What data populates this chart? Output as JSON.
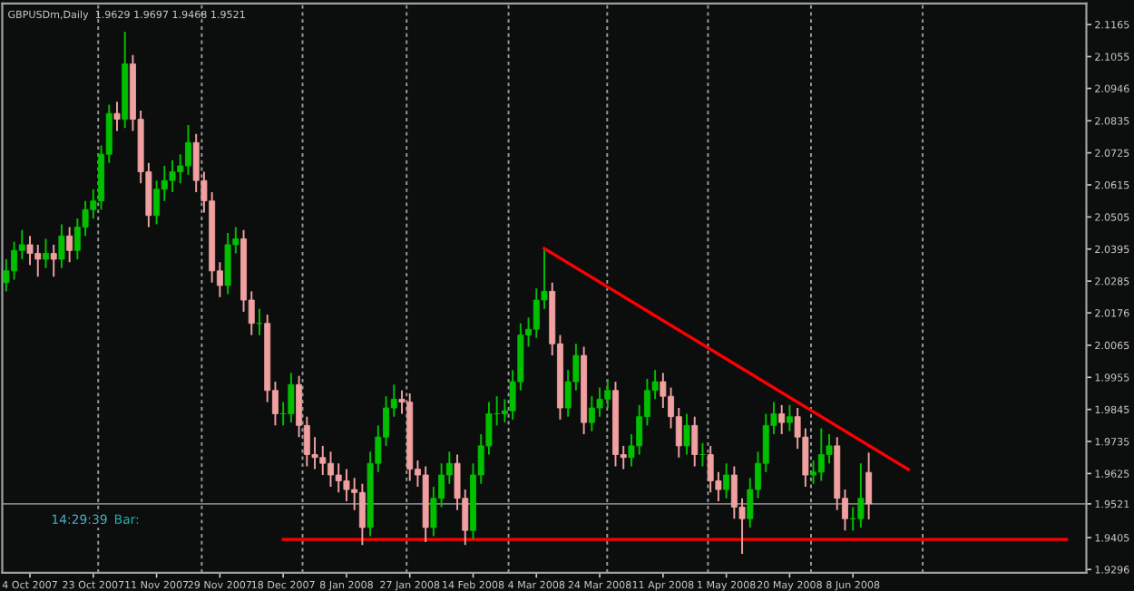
{
  "chart_data": {
    "type": "candlestick",
    "title": "GBPUSDm,Daily  1.9629 1.9697 1.9468 1.9521",
    "annotations": [
      "14:29:39",
      "Bar:"
    ],
    "categories": [
      null,
      null,
      null,
      "4 Oct 2007",
      null,
      null,
      null,
      null,
      null,
      null,
      null,
      "23 Oct 2007",
      null,
      null,
      null,
      null,
      null,
      null,
      null,
      "11 Nov 2007",
      null,
      null,
      null,
      null,
      null,
      null,
      null,
      "29 Nov 2007",
      null,
      null,
      null,
      null,
      null,
      null,
      null,
      "18 Dec 2007",
      null,
      null,
      null,
      null,
      null,
      null,
      null,
      "8 Jan 2008",
      null,
      null,
      null,
      null,
      null,
      null,
      null,
      "27 Jan 2008",
      null,
      null,
      null,
      null,
      null,
      null,
      null,
      "14 Feb 2008",
      null,
      null,
      null,
      null,
      null,
      null,
      null,
      "4 Mar 2008",
      null,
      null,
      null,
      null,
      null,
      null,
      null,
      "24 Mar 2008",
      null,
      null,
      null,
      null,
      null,
      null,
      null,
      "11 Apr 2008",
      null,
      null,
      null,
      null,
      null,
      null,
      null,
      "1 May 2008",
      null,
      null,
      null,
      null,
      null,
      null,
      null,
      "20 May 2008",
      null,
      null,
      null,
      null,
      null,
      null,
      null,
      "8 Jun 2008",
      null,
      null,
      null,
      null,
      null,
      null,
      null,
      null,
      null,
      null,
      null,
      null,
      null,
      null,
      null,
      null,
      null,
      null,
      null,
      null,
      null,
      null,
      null,
      null,
      null,
      null,
      null,
      null,
      null
    ],
    "ylim": [
      1.9285,
      2.1237
    ],
    "yticks": [
      {
        "value": 2.1165,
        "label": "2.1165"
      },
      {
        "value": 2.1055,
        "label": "2.1055"
      },
      {
        "value": 2.0946,
        "label": "2.0946"
      },
      {
        "value": 2.0835,
        "label": "2.0835"
      },
      {
        "value": 2.0725,
        "label": "2.0725"
      },
      {
        "value": 2.0615,
        "label": "2.0615"
      },
      {
        "value": 2.0505,
        "label": "2.0505"
      },
      {
        "value": 2.0395,
        "label": "2.0395"
      },
      {
        "value": 2.0285,
        "label": "2.0285"
      },
      {
        "value": 2.0176,
        "label": "2.0176"
      },
      {
        "value": 2.0065,
        "label": "2.0065"
      },
      {
        "value": 1.9955,
        "label": "1.9955"
      },
      {
        "value": 1.9845,
        "label": "1.9845"
      },
      {
        "value": 1.9735,
        "label": "1.9735"
      },
      {
        "value": 1.9625,
        "label": "1.9625"
      },
      {
        "value": 1.9521,
        "label": "1.9521"
      },
      {
        "value": 1.9405,
        "label": "1.9405"
      },
      {
        "value": 1.9296,
        "label": "1.9296"
      }
    ],
    "grid": false,
    "ref_lines": [
      {
        "axis": "y",
        "value": 1.9521,
        "label": null,
        "color": "#808080",
        "line_style": "solid"
      }
    ],
    "series": [
      {
        "colors": [
          "#00c000",
          "#00c000",
          "#00c000",
          "#f0a0a0",
          "#f0a0a0",
          "#00c000",
          "#f0a0a0",
          "#00c000",
          "#f0a0a0",
          "#00c000",
          "#00c000",
          "#00c000",
          "#00c000",
          "#00c000",
          "#f0a0a0",
          "#00c000",
          "#f0a0a0",
          "#f0a0a0",
          "#f0a0a0",
          "#00c000",
          "#00c000",
          "#00c000",
          "#00c000",
          "#00c000",
          "#f0a0a0",
          "#f0a0a0",
          "#f0a0a0",
          "#f0a0a0",
          "#00c000",
          "#00c000",
          "#f0a0a0",
          "#f0a0a0",
          "#00c000",
          "#f0a0a0",
          "#f0a0a0",
          "#00c000",
          "#00c000",
          "#f0a0a0",
          "#f0a0a0",
          "#f0a0a0",
          "#f0a0a0",
          "#f0a0a0",
          "#f0a0a0",
          "#f0a0a0",
          "#f0a0a0",
          "#f0a0a0",
          "#00c000",
          "#00c000",
          "#00c000",
          "#00c000",
          "#f0a0a0",
          "#f0a0a0",
          "#f0a0a0",
          "#f0a0a0",
          "#00c000",
          "#00c000",
          "#00c000",
          "#f0a0a0",
          "#f0a0a0",
          "#00c000",
          "#00c000",
          "#00c000",
          "#00c000",
          "#00c000",
          "#00c000",
          "#00c000",
          "#00c000",
          "#00c000",
          "#00c000",
          "#f0a0a0",
          "#f0a0a0",
          "#00c000",
          "#00c000",
          "#f0a0a0",
          "#00c000",
          "#00c000",
          "#00c000",
          "#f0a0a0",
          "#f0a0a0",
          "#00c000",
          "#00c000",
          "#00c000",
          "#00c000",
          "#f0a0a0",
          "#f0a0a0",
          "#f0a0a0",
          "#00c000",
          "#f0a0a0",
          "#00c000",
          "#f0a0a0",
          "#f0a0a0",
          "#00c000",
          "#f0a0a0",
          "#f0a0a0",
          "#00c000",
          "#00c000",
          "#00c000",
          "#00c000",
          "#f0a0a0",
          "#00c000",
          "#f0a0a0",
          "#f0a0a0",
          "#00c000",
          "#00c000",
          "#00c000",
          "#f0a0a0",
          "#f0a0a0",
          "#00c000",
          "#00c000",
          "#f0a0a0",
          null,
          null,
          null,
          null,
          null,
          null,
          null,
          null,
          null,
          null,
          null,
          null,
          null,
          null,
          null,
          null,
          null,
          null,
          null,
          null,
          null,
          null,
          null,
          null,
          null,
          null,
          null
        ],
        "ohlc": [
          [
            2.028,
            2.036,
            2.025,
            2.032
          ],
          [
            2.032,
            2.042,
            2.029,
            2.039
          ],
          [
            2.039,
            2.046,
            2.036,
            2.041
          ],
          [
            2.041,
            2.044,
            2.034,
            2.038
          ],
          [
            2.038,
            2.041,
            2.03,
            2.036
          ],
          [
            2.036,
            2.043,
            2.033,
            2.038
          ],
          [
            2.038,
            2.041,
            2.03,
            2.036
          ],
          [
            2.036,
            2.048,
            2.033,
            2.044
          ],
          [
            2.044,
            2.047,
            2.035,
            2.039
          ],
          [
            2.039,
            2.05,
            2.036,
            2.047
          ],
          [
            2.047,
            2.056,
            2.044,
            2.053
          ],
          [
            2.053,
            2.06,
            2.05,
            2.056
          ],
          [
            2.056,
            2.075,
            2.053,
            2.072
          ],
          [
            2.072,
            2.089,
            2.069,
            2.086
          ],
          [
            2.086,
            2.09,
            2.08,
            2.084
          ],
          [
            2.084,
            2.114,
            2.081,
            2.103
          ],
          [
            2.103,
            2.106,
            2.08,
            2.084
          ],
          [
            2.084,
            2.087,
            2.062,
            2.066
          ],
          [
            2.066,
            2.069,
            2.047,
            2.051
          ],
          [
            2.051,
            2.063,
            2.048,
            2.06
          ],
          [
            2.06,
            2.068,
            2.056,
            2.063
          ],
          [
            2.063,
            2.07,
            2.059,
            2.066
          ],
          [
            2.066,
            2.072,
            2.062,
            2.068
          ],
          [
            2.068,
            2.082,
            2.065,
            2.076
          ],
          [
            2.076,
            2.079,
            2.059,
            2.063
          ],
          [
            2.063,
            2.066,
            2.052,
            2.056
          ],
          [
            2.056,
            2.059,
            2.028,
            2.032
          ],
          [
            2.032,
            2.035,
            2.023,
            2.027
          ],
          [
            2.027,
            2.045,
            2.024,
            2.041
          ],
          [
            2.041,
            2.047,
            2.038,
            2.043
          ],
          [
            2.043,
            2.046,
            2.018,
            2.022
          ],
          [
            2.022,
            2.025,
            2.01,
            2.014
          ],
          [
            2.014,
            2.019,
            2.01,
            2.014
          ],
          [
            2.014,
            2.017,
            1.987,
            1.991
          ],
          [
            1.991,
            1.994,
            1.979,
            1.983
          ],
          [
            1.983,
            1.987,
            1.979,
            1.983
          ],
          [
            1.983,
            1.997,
            1.98,
            1.993
          ],
          [
            1.993,
            1.996,
            1.975,
            1.979
          ],
          [
            1.979,
            1.982,
            1.965,
            1.969
          ],
          [
            1.969,
            1.975,
            1.964,
            1.968
          ],
          [
            1.968,
            1.972,
            1.962,
            1.966
          ],
          [
            1.966,
            1.97,
            1.958,
            1.962
          ],
          [
            1.962,
            1.966,
            1.956,
            1.96
          ],
          [
            1.96,
            1.964,
            1.953,
            1.957
          ],
          [
            1.957,
            1.961,
            1.95,
            1.956
          ],
          [
            1.956,
            1.959,
            1.938,
            1.944
          ],
          [
            1.944,
            1.97,
            1.941,
            1.966
          ],
          [
            1.966,
            1.979,
            1.963,
            1.975
          ],
          [
            1.975,
            1.989,
            1.972,
            1.985
          ],
          [
            1.985,
            1.993,
            1.982,
            1.988
          ],
          [
            1.988,
            1.991,
            1.983,
            1.987
          ],
          [
            1.987,
            1.99,
            1.96,
            1.964
          ],
          [
            1.964,
            1.967,
            1.958,
            1.962
          ],
          [
            1.962,
            1.965,
            1.939,
            1.944
          ],
          [
            1.944,
            1.958,
            1.941,
            1.954
          ],
          [
            1.954,
            1.966,
            1.951,
            1.962
          ],
          [
            1.962,
            1.97,
            1.959,
            1.966
          ],
          [
            1.966,
            1.969,
            1.95,
            1.954
          ],
          [
            1.954,
            1.957,
            1.938,
            1.943
          ],
          [
            1.943,
            1.966,
            1.94,
            1.962
          ],
          [
            1.962,
            1.976,
            1.959,
            1.972
          ],
          [
            1.972,
            1.987,
            1.969,
            1.983
          ],
          [
            1.983,
            1.989,
            1.979,
            1.983
          ],
          [
            1.983,
            1.988,
            1.98,
            1.984
          ],
          [
            1.984,
            1.998,
            1.981,
            1.994
          ],
          [
            1.994,
            2.014,
            1.991,
            2.01
          ],
          [
            2.01,
            2.016,
            2.006,
            2.012
          ],
          [
            2.012,
            2.026,
            2.009,
            2.022
          ],
          [
            2.022,
            2.039,
            2.019,
            2.025
          ],
          [
            2.025,
            2.028,
            2.003,
            2.007
          ],
          [
            2.007,
            2.01,
            1.981,
            1.985
          ],
          [
            1.985,
            1.998,
            1.982,
            1.994
          ],
          [
            1.994,
            2.007,
            1.991,
            2.003
          ],
          [
            2.003,
            2.006,
            1.976,
            1.98
          ],
          [
            1.98,
            1.989,
            1.977,
            1.985
          ],
          [
            1.985,
            1.992,
            1.982,
            1.988
          ],
          [
            1.988,
            1.995,
            1.985,
            1.991
          ],
          [
            1.991,
            1.994,
            1.965,
            1.969
          ],
          [
            1.969,
            1.972,
            1.964,
            1.968
          ],
          [
            1.968,
            1.976,
            1.965,
            1.972
          ],
          [
            1.972,
            1.986,
            1.969,
            1.982
          ],
          [
            1.982,
            1.995,
            1.979,
            1.991
          ],
          [
            1.991,
            1.998,
            1.988,
            1.994
          ],
          [
            1.994,
            1.997,
            1.985,
            1.989
          ],
          [
            1.989,
            1.992,
            1.978,
            1.982
          ],
          [
            1.982,
            1.985,
            1.968,
            1.972
          ],
          [
            1.972,
            1.983,
            1.969,
            1.979
          ],
          [
            1.979,
            1.982,
            1.965,
            1.969
          ],
          [
            1.969,
            1.973,
            1.965,
            1.969
          ],
          [
            1.969,
            1.972,
            1.956,
            1.96
          ],
          [
            1.96,
            1.963,
            1.953,
            1.957
          ],
          [
            1.957,
            1.966,
            1.954,
            1.962
          ],
          [
            1.962,
            1.965,
            1.947,
            1.951
          ],
          [
            1.951,
            1.954,
            1.935,
            1.947
          ],
          [
            1.947,
            1.961,
            1.944,
            1.957
          ],
          [
            1.957,
            1.97,
            1.954,
            1.966
          ],
          [
            1.966,
            1.983,
            1.963,
            1.979
          ],
          [
            1.979,
            1.987,
            1.976,
            1.983
          ],
          [
            1.983,
            1.986,
            1.976,
            1.98
          ],
          [
            1.98,
            1.986,
            1.977,
            1.982
          ],
          [
            1.982,
            1.985,
            1.971,
            1.975
          ],
          [
            1.975,
            1.978,
            1.958,
            1.962
          ],
          [
            1.962,
            1.967,
            1.959,
            1.963
          ],
          [
            1.963,
            1.978,
            1.96,
            1.969
          ],
          [
            1.969,
            1.976,
            1.966,
            1.972
          ],
          [
            1.972,
            1.975,
            1.95,
            1.954
          ],
          [
            1.954,
            1.957,
            1.943,
            1.947
          ],
          [
            1.947,
            1.951,
            1.943,
            1.947
          ],
          [
            1.947,
            1.966,
            1.944,
            1.954
          ],
          [
            1.9629,
            1.9697,
            1.9468,
            1.9521
          ],
          null,
          null,
          null,
          null,
          null,
          null,
          null,
          null,
          null,
          null,
          null,
          null,
          null,
          null,
          null,
          null,
          null,
          null,
          null,
          null,
          null,
          null,
          null,
          null,
          null,
          null,
          null
        ]
      },
      {
        "type": "line",
        "color": "#ff0000",
        "values": [
          null,
          null,
          null,
          null,
          null,
          null,
          null,
          null,
          null,
          null,
          null,
          null,
          null,
          null,
          null,
          null,
          null,
          null,
          null,
          null,
          null,
          null,
          null,
          null,
          null,
          null,
          null,
          null,
          null,
          null,
          null,
          null,
          null,
          null,
          null,
          null,
          null,
          null,
          null,
          null,
          null,
          null,
          null,
          null,
          null,
          null,
          null,
          null,
          null,
          null,
          null,
          null,
          null,
          null,
          null,
          null,
          null,
          null,
          null,
          null,
          null,
          null,
          null,
          null,
          null,
          null,
          null,
          null,
          2.0397,
          null,
          null,
          null,
          null,
          null,
          null,
          null,
          null,
          null,
          null,
          null,
          null,
          null,
          null,
          null,
          null,
          null,
          null,
          null,
          null,
          null,
          null,
          null,
          null,
          null,
          null,
          null,
          null,
          null,
          null,
          null,
          null,
          null,
          null,
          null,
          null,
          null,
          null,
          null,
          null,
          null,
          null,
          null,
          null,
          null,
          1.9639,
          null,
          null,
          null,
          null,
          null,
          null,
          null,
          null,
          null,
          null,
          null,
          null,
          null,
          null,
          null,
          null,
          null,
          null,
          null,
          null,
          null,
          null
        ]
      },
      {
        "type": "line",
        "color": "#ff0000",
        "values": [
          null,
          null,
          null,
          null,
          null,
          null,
          null,
          null,
          null,
          null,
          null,
          null,
          null,
          null,
          null,
          null,
          null,
          null,
          null,
          null,
          null,
          null,
          null,
          null,
          null,
          null,
          null,
          null,
          null,
          null,
          null,
          null,
          null,
          null,
          null,
          1.9399,
          null,
          null,
          null,
          null,
          null,
          null,
          null,
          null,
          null,
          null,
          null,
          null,
          null,
          null,
          null,
          null,
          null,
          null,
          null,
          null,
          null,
          null,
          null,
          null,
          null,
          null,
          null,
          null,
          null,
          null,
          null,
          null,
          null,
          null,
          null,
          null,
          null,
          null,
          null,
          null,
          null,
          null,
          null,
          null,
          null,
          null,
          null,
          null,
          null,
          null,
          null,
          null,
          null,
          null,
          null,
          null,
          null,
          null,
          null,
          null,
          null,
          null,
          null,
          null,
          null,
          null,
          null,
          null,
          null,
          null,
          null,
          null,
          null,
          null,
          null,
          null,
          null,
          null,
          null,
          null,
          null,
          null,
          null,
          null,
          null,
          null,
          null,
          null,
          null,
          null,
          null,
          null,
          null,
          null,
          null,
          null,
          null,
          null,
          1.9399,
          null,
          null
        ]
      }
    ]
  }
}
